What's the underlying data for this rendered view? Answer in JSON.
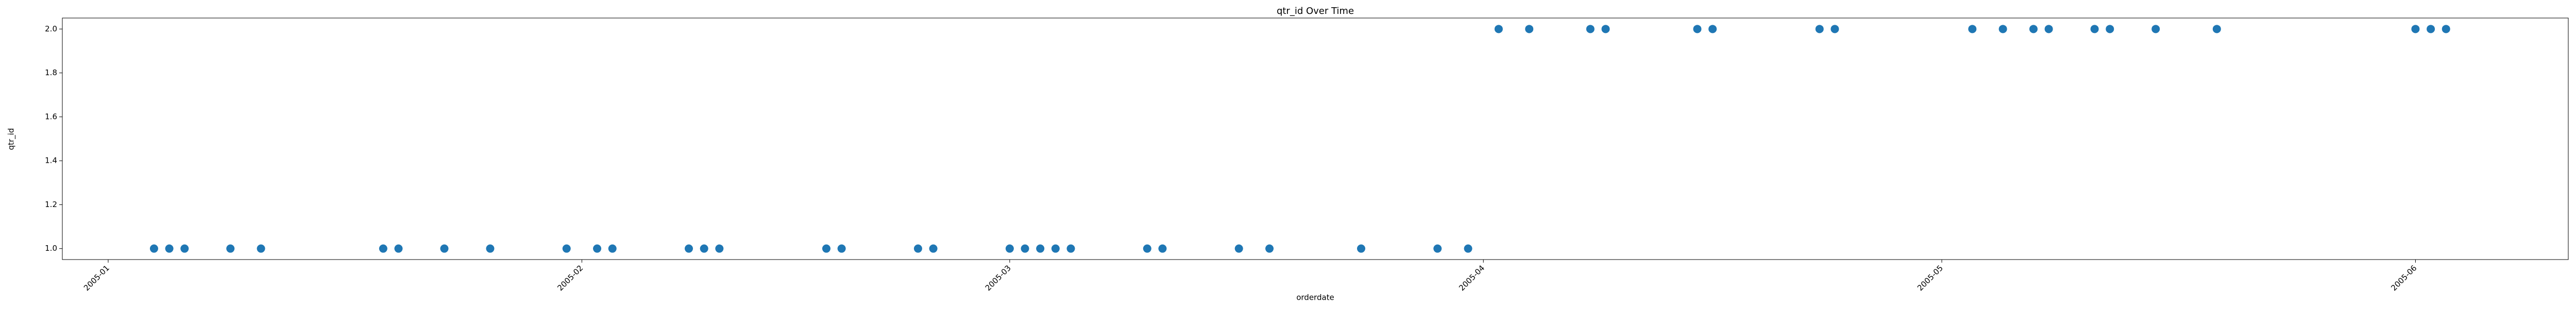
{
  "chart_data": {
    "type": "scatter",
    "title": "qtr_id Over Time",
    "x_label": "orderdate",
    "y_label": "qtr_id",
    "x": [
      "2005-01-04",
      "2005-01-05",
      "2005-01-06",
      "2005-01-09",
      "2005-01-11",
      "2005-01-19",
      "2005-01-20",
      "2005-01-23",
      "2005-01-26",
      "2005-01-31",
      "2005-02-02",
      "2005-02-03",
      "2005-02-08",
      "2005-02-09",
      "2005-02-10",
      "2005-02-17",
      "2005-02-18",
      "2005-02-23",
      "2005-02-24",
      "2005-03-01",
      "2005-03-02",
      "2005-03-03",
      "2005-03-04",
      "2005-03-05",
      "2005-03-10",
      "2005-03-11",
      "2005-03-16",
      "2005-03-18",
      "2005-03-24",
      "2005-03-29",
      "2005-03-31",
      "2005-04-02",
      "2005-04-04",
      "2005-04-08",
      "2005-04-09",
      "2005-04-15",
      "2005-04-16",
      "2005-04-23",
      "2005-04-24",
      "2005-05-03",
      "2005-05-05",
      "2005-05-07",
      "2005-05-08",
      "2005-05-11",
      "2005-05-12",
      "2005-05-15",
      "2005-05-19",
      "2005-06-01",
      "2005-06-02",
      "2005-06-03"
    ],
    "values": [
      1,
      1,
      1,
      1,
      1,
      1,
      1,
      1,
      1,
      1,
      1,
      1,
      1,
      1,
      1,
      1,
      1,
      1,
      1,
      1,
      1,
      1,
      1,
      1,
      1,
      1,
      1,
      1,
      1,
      1,
      1,
      2,
      2,
      2,
      2,
      2,
      2,
      2,
      2,
      2,
      2,
      2,
      2,
      2,
      2,
      2,
      2,
      2,
      2,
      2
    ],
    "color": "#1f77b4",
    "xlim": [
      "2004-12-29",
      "2005-06-11"
    ],
    "xticks": [
      {
        "value": "2005-01-01",
        "label": "2005-01"
      },
      {
        "value": "2005-02-01",
        "label": "2005-02"
      },
      {
        "value": "2005-03-01",
        "label": "2005-03"
      },
      {
        "value": "2005-04-01",
        "label": "2005-04"
      },
      {
        "value": "2005-05-01",
        "label": "2005-05"
      },
      {
        "value": "2005-06-01",
        "label": "2005-06"
      }
    ],
    "ylim": [
      0.95,
      2.05
    ],
    "yticks": [
      {
        "value": 1.0,
        "label": "1.0"
      },
      {
        "value": 1.2,
        "label": "1.2"
      },
      {
        "value": 1.4,
        "label": "1.4"
      },
      {
        "value": 1.6,
        "label": "1.6"
      },
      {
        "value": 1.8,
        "label": "1.8"
      },
      {
        "value": 2.0,
        "label": "2.0"
      }
    ],
    "grid": false
  }
}
